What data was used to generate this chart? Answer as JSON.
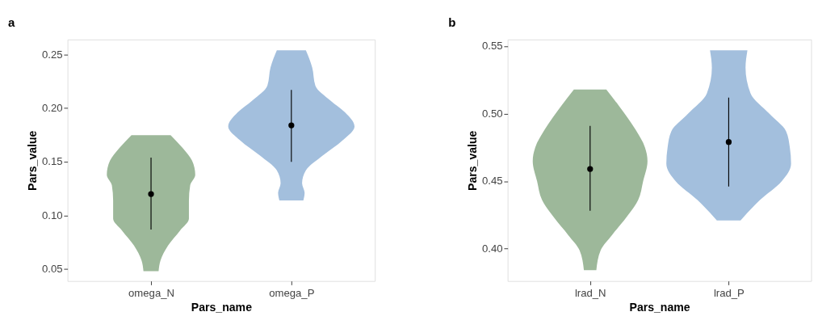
{
  "chart_data": [
    {
      "type": "scatter",
      "title": "a",
      "xlabel": "Pars_name",
      "ylabel": "Pars_value",
      "grid": false,
      "legend": false,
      "categories": [
        "omega_N",
        "omega_P"
      ],
      "ylim": [
        0.039,
        0.264
      ],
      "yticks": [
        {
          "value": 0.05,
          "label": "0.05"
        },
        {
          "value": 0.1,
          "label": "0.10"
        },
        {
          "value": 0.15,
          "label": "0.15"
        },
        {
          "value": 0.2,
          "label": "0.20"
        },
        {
          "value": 0.25,
          "label": "0.25"
        }
      ],
      "series": [
        {
          "color": "#000000",
          "values": [
            0.12,
            0.184
          ],
          "errors": [
            [
              0.087,
              0.154
            ],
            [
              0.15,
              0.217
            ]
          ]
        }
      ]
    },
    {
      "type": "scatter",
      "title": "b",
      "xlabel": "Pars_name",
      "ylabel": "Pars_value",
      "grid": false,
      "legend": false,
      "categories": [
        "lrad_N",
        "lrad_P"
      ],
      "ylim": [
        0.376,
        0.555
      ],
      "yticks": [
        {
          "value": 0.4,
          "label": "0.40"
        },
        {
          "value": 0.45,
          "label": "0.45"
        },
        {
          "value": 0.5,
          "label": "0.50"
        },
        {
          "value": 0.55,
          "label": "0.55"
        }
      ],
      "series": [
        {
          "color": "#000000",
          "values": [
            0.459,
            0.479
          ],
          "errors": [
            [
              0.428,
              0.491
            ],
            [
              0.446,
              0.512
            ]
          ]
        }
      ]
    }
  ]
}
